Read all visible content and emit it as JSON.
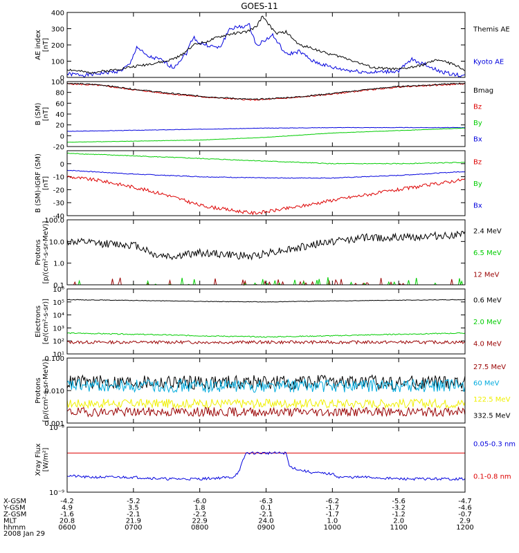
{
  "title": "GOES-11",
  "date_label": "2008 Jan 29",
  "colors": {
    "black": "#000000",
    "blue": "#0000dd",
    "green": "#00cc00",
    "red": "#dd0000",
    "darkred": "#990000",
    "yellow": "#f0f000",
    "cyan": "#00aadd",
    "purple": "#7700aa"
  },
  "time_axis": {
    "row_labels": [
      "X-GSM",
      "Y-GSM",
      "Z-GSM",
      "MLT",
      "hhmm"
    ],
    "columns": [
      [
        "-4.2",
        "4.9",
        "-1.6",
        "20.8",
        "0600"
      ],
      [
        "-5.2",
        "3.5",
        "-2.1",
        "21.9",
        "0700"
      ],
      [
        "-6.0",
        "1.8",
        "-2.2",
        "22.9",
        "0800"
      ],
      [
        "-6.3",
        "0.1",
        "-2.1",
        "24.0",
        "0900"
      ],
      [
        "-6.2",
        "-1.7",
        "-1.7",
        "1.0",
        "1000"
      ],
      [
        "-5.6",
        "-3.2",
        "-1.2",
        "2.0",
        "1100"
      ],
      [
        "-4.7",
        "-4.6",
        "-0.7",
        "2.9",
        "1200"
      ]
    ]
  },
  "chart_data": [
    {
      "id": "ae",
      "type": "line",
      "ylabel": "AE index\n[nT]",
      "ylim": [
        0,
        400
      ],
      "scale": "linear",
      "yticks": [
        0,
        100,
        200,
        300,
        400
      ],
      "ytick_labels": [
        "0",
        "100",
        "200",
        "300",
        "400"
      ],
      "series": [
        {
          "name": "Kyoto AE",
          "color": "#0000dd",
          "noise": 12,
          "seed": 1,
          "x": [
            6.0,
            6.3,
            6.6,
            6.8,
            6.95,
            7.05,
            7.2,
            7.4,
            7.6,
            7.8,
            7.9,
            8.0,
            8.1,
            8.3,
            8.45,
            8.6,
            8.75,
            8.85,
            8.95,
            9.1,
            9.3,
            9.5,
            9.7,
            10.0,
            10.3,
            10.6,
            11.0,
            11.2,
            11.4,
            11.6,
            11.8,
            12.0
          ],
          "y": [
            20,
            15,
            30,
            40,
            80,
            190,
            130,
            110,
            60,
            150,
            250,
            210,
            200,
            180,
            300,
            310,
            320,
            200,
            220,
            260,
            140,
            160,
            100,
            60,
            40,
            30,
            40,
            110,
            80,
            40,
            20,
            10
          ]
        },
        {
          "name": "Themis AE",
          "color": "#000000",
          "noise": 8,
          "seed": 2,
          "x": [
            6.0,
            6.3,
            6.6,
            6.9,
            7.2,
            7.5,
            7.7,
            7.9,
            8.1,
            8.3,
            8.5,
            8.7,
            8.85,
            8.95,
            9.05,
            9.15,
            9.3,
            9.5,
            9.7,
            9.9,
            10.2,
            10.6,
            11.0,
            11.3,
            11.6,
            11.9,
            12.0
          ],
          "y": [
            50,
            30,
            40,
            60,
            80,
            100,
            130,
            200,
            220,
            250,
            270,
            280,
            310,
            380,
            320,
            270,
            280,
            200,
            180,
            150,
            120,
            60,
            50,
            70,
            110,
            70,
            40
          ]
        }
      ]
    },
    {
      "id": "bsm",
      "type": "line",
      "ylabel": "B (SM)\n[nT]",
      "ylim": [
        -20,
        100
      ],
      "scale": "linear",
      "yticks": [
        -20,
        0,
        20,
        40,
        60,
        80,
        100
      ],
      "ytick_labels": [
        "-20",
        "0",
        "20",
        "40",
        "60",
        "80",
        "100"
      ],
      "series": [
        {
          "name": "Bx",
          "color": "#0000dd",
          "noise": 0.4,
          "seed": 3,
          "x": [
            6.0,
            8.0,
            9.0,
            10.0,
            12.0
          ],
          "y": [
            8,
            12,
            14,
            15,
            15
          ]
        },
        {
          "name": "By",
          "color": "#00cc00",
          "noise": 0.3,
          "seed": 4,
          "x": [
            6.0,
            8.0,
            9.0,
            10.0,
            12.0
          ],
          "y": [
            -12,
            -8,
            -3,
            5,
            14
          ]
        },
        {
          "name": "Bz",
          "color": "#dd0000",
          "noise": 1.2,
          "seed": 5,
          "x": [
            6.0,
            6.5,
            7.0,
            7.5,
            8.0,
            8.5,
            8.8,
            9.0,
            9.5,
            10.0,
            10.5,
            11.0,
            12.0
          ],
          "y": [
            96,
            93,
            85,
            78,
            72,
            68,
            66,
            67,
            71,
            77,
            84,
            90,
            96
          ]
        },
        {
          "name": "Bmag",
          "color": "#000000",
          "noise": 1.2,
          "seed": 6,
          "x": [
            6.0,
            6.5,
            7.0,
            7.5,
            8.0,
            8.5,
            8.8,
            9.0,
            9.5,
            10.0,
            10.5,
            11.0,
            12.0
          ],
          "y": [
            97,
            94,
            86,
            79,
            73,
            69,
            67,
            68,
            72,
            78,
            85,
            91,
            97
          ]
        }
      ]
    },
    {
      "id": "bdiff",
      "type": "line",
      "ylabel": "B (SM)-IGRF (SM)\n[nT]",
      "ylim": [
        -40,
        10
      ],
      "scale": "linear",
      "yticks": [
        -40,
        -30,
        -20,
        -10,
        0
      ],
      "ytick_labels": [
        "-40",
        "-30",
        "-20",
        "-10",
        "0"
      ],
      "series": [
        {
          "name": "Bx",
          "color": "#0000dd",
          "noise": 0.3,
          "seed": 7,
          "x": [
            6.0,
            7.0,
            8.0,
            9.0,
            10.0,
            11.0,
            12.0
          ],
          "y": [
            -5,
            -8,
            -10,
            -11,
            -11,
            -9,
            -6
          ]
        },
        {
          "name": "By",
          "color": "#00cc00",
          "noise": 0.3,
          "seed": 8,
          "x": [
            6.0,
            7.0,
            8.0,
            9.0,
            10.0,
            11.0,
            12.0
          ],
          "y": [
            8,
            6,
            4,
            2,
            0,
            0,
            1
          ]
        },
        {
          "name": "Bz",
          "color": "#dd0000",
          "noise": 1.3,
          "seed": 9,
          "x": [
            6.0,
            6.5,
            7.0,
            7.5,
            8.0,
            8.5,
            8.8,
            9.0,
            9.5,
            10.0,
            10.5,
            11.0,
            11.5,
            12.0
          ],
          "y": [
            -10,
            -13,
            -18,
            -24,
            -32,
            -36,
            -38,
            -37,
            -33,
            -28,
            -24,
            -20,
            -16,
            -12
          ]
        }
      ]
    },
    {
      "id": "protons_hi",
      "type": "line",
      "ylabel": "Protons\n[p/(cm²-s-sr-MeV)]",
      "ylim": [
        0.1,
        100
      ],
      "scale": "log",
      "yticks": [
        0.1,
        1,
        10,
        100
      ],
      "ytick_labels": [
        "0.1",
        "1.0",
        "10.0",
        "100.0"
      ],
      "series": [
        {
          "name": "12 MeV",
          "color": "#990000",
          "noise": 0,
          "spiky": true,
          "seed": 10,
          "x": [
            6.0,
            12.0
          ],
          "y": [
            0.1,
            0.1
          ]
        },
        {
          "name": "6.5 MeV",
          "color": "#00cc00",
          "noise": 0,
          "spiky": true,
          "seed": 11,
          "x": [
            6.0,
            12.0
          ],
          "y": [
            0.1,
            0.1
          ]
        },
        {
          "name": "2.4 MeV",
          "color": "#000000",
          "noise": 0.18,
          "seed": 12,
          "x": [
            6.0,
            6.5,
            7.0,
            7.3,
            7.6,
            8.0,
            8.4,
            8.8,
            9.0,
            9.5,
            10.0,
            10.5,
            11.0,
            11.5,
            12.0
          ],
          "y": [
            10,
            8,
            7,
            2.5,
            2,
            3,
            2.5,
            2,
            3,
            5,
            10,
            15,
            15,
            18,
            20
          ]
        }
      ]
    },
    {
      "id": "electrons",
      "type": "line",
      "ylabel": "Electrons\n[e/(cm²-s-sr)]",
      "ylim": [
        10,
        1000000
      ],
      "scale": "log",
      "yticks": [
        10,
        100,
        1000,
        10000,
        100000,
        1000000
      ],
      "ytick_labels": [
        "10¹",
        "10²",
        "10³",
        "10⁴",
        "10⁵",
        "10⁶"
      ],
      "series": [
        {
          "name": "4.0 MeV",
          "color": "#990000",
          "noise": 0.12,
          "seed": 13,
          "x": [
            6.0,
            12.0
          ],
          "y": [
            80,
            80
          ]
        },
        {
          "name": "2.0 MeV",
          "color": "#00cc00",
          "noise": 0.04,
          "seed": 14,
          "x": [
            6.0,
            8.0,
            9.0,
            10.0,
            12.0
          ],
          "y": [
            400,
            250,
            200,
            250,
            400
          ]
        },
        {
          "name": "0.6 MeV",
          "color": "#000000",
          "noise": 0.02,
          "seed": 15,
          "x": [
            6.0,
            8.0,
            9.0,
            10.0,
            12.0
          ],
          "y": [
            150000,
            110000,
            100000,
            120000,
            150000
          ]
        }
      ]
    },
    {
      "id": "protons_lo",
      "type": "line",
      "ylabel": "Protons\n[p/(cm²-s-sr-MeV)]",
      "ylim": [
        0.001,
        0.1
      ],
      "scale": "log",
      "yticks": [
        0.001,
        0.01,
        0.1
      ],
      "ytick_labels": [
        "0.001",
        "0.010",
        "0.100"
      ],
      "series": [
        {
          "name": "332.5 MeV",
          "color": "#000000",
          "noise": 0.22,
          "seed": 16,
          "x": [
            6.0,
            12.0
          ],
          "y": [
            0.018,
            0.018
          ]
        },
        {
          "name": "122.5 MeV",
          "color": "#f0f000",
          "noise": 0.14,
          "seed": 17,
          "x": [
            6.0,
            12.0
          ],
          "y": [
            0.004,
            0.004
          ]
        },
        {
          "name": "60 MeV",
          "color": "#00aadd",
          "noise": 0.2,
          "seed": 18,
          "x": [
            6.0,
            12.0
          ],
          "y": [
            0.014,
            0.014
          ]
        },
        {
          "name": "27.5 MeV",
          "color": "#990000",
          "noise": 0.14,
          "seed": 19,
          "x": [
            6.0,
            12.0
          ],
          "y": [
            0.0022,
            0.0022
          ]
        }
      ]
    },
    {
      "id": "xray",
      "type": "line",
      "ylabel": "Xray Flux\n[W/m²]",
      "ylim": [
        1e-09,
        1e-08
      ],
      "scale": "log",
      "yticks": [
        1e-09,
        1e-08
      ],
      "ytick_labels": [
        "10⁻⁹",
        "10⁻⁸"
      ],
      "series": [
        {
          "name": "0.1-0.8 nm",
          "color": "#dd0000",
          "noise": 0,
          "seed": 20,
          "x": [
            6.0,
            12.0
          ],
          "y": [
            4e-09,
            4e-09
          ]
        },
        {
          "name": "0.05-0.3 nm",
          "color": "#0000dd",
          "noise": 0.02,
          "seed": 21,
          "x": [
            6.0,
            6.3,
            7.0,
            7.5,
            8.0,
            8.5,
            8.6,
            8.7,
            9.3,
            9.35,
            9.5,
            9.7,
            10.0,
            10.1,
            10.5,
            11.0,
            12.0
          ],
          "y": [
            1.8e-09,
            1.7e-09,
            1.7e-09,
            1.6e-09,
            1.6e-09,
            1.7e-09,
            2.1e-09,
            4e-09,
            4e-09,
            2.5e-09,
            2.2e-09,
            2e-09,
            1.9e-09,
            1.7e-09,
            1.7e-09,
            1.6e-09,
            1.6e-09
          ]
        }
      ]
    }
  ]
}
